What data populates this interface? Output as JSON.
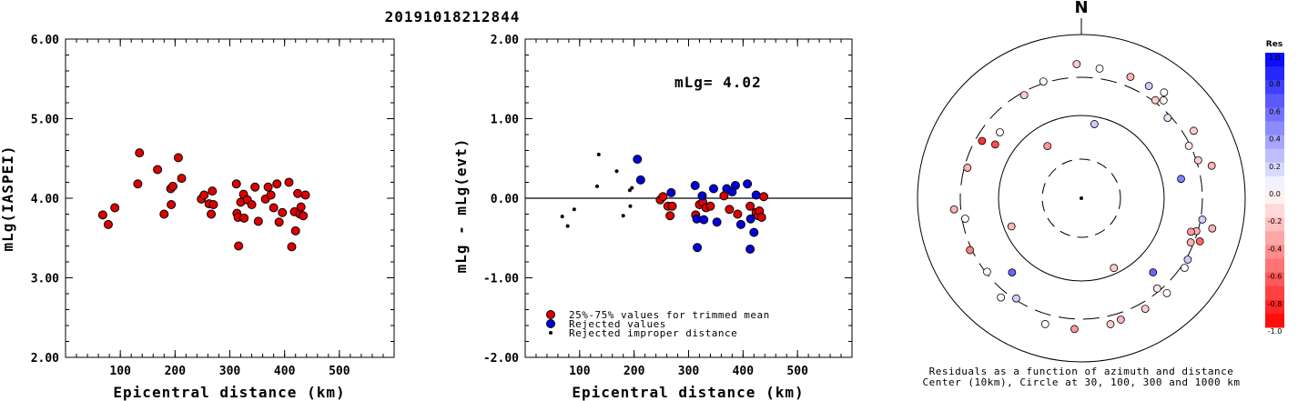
{
  "header": {
    "title": "20191018212844"
  },
  "chart_data": [
    {
      "type": "scatter",
      "name": "magnitude-vs-distance",
      "xlabel": "Epicentral distance (km)",
      "ylabel": "mLg(IASPEI)",
      "xlim": [
        0,
        600
      ],
      "ylim": [
        2.0,
        6.0
      ],
      "xticks": [
        "100",
        "200",
        "300",
        "400",
        "500"
      ],
      "yticks": [
        "2.00",
        "3.00",
        "4.00",
        "5.00",
        "6.00"
      ],
      "point_color": "#dd0000",
      "points": [
        [
          68,
          3.79
        ],
        [
          78,
          3.67
        ],
        [
          90,
          3.88
        ],
        [
          132,
          4.18
        ],
        [
          135,
          4.57
        ],
        [
          168,
          4.36
        ],
        [
          180,
          3.8
        ],
        [
          192,
          4.12
        ],
        [
          193,
          3.92
        ],
        [
          196,
          4.15
        ],
        [
          206,
          4.51
        ],
        [
          212,
          4.25
        ],
        [
          248,
          3.99
        ],
        [
          253,
          4.04
        ],
        [
          262,
          3.93
        ],
        [
          266,
          3.8
        ],
        [
          268,
          4.09
        ],
        [
          270,
          3.92
        ],
        [
          312,
          4.18
        ],
        [
          313,
          3.81
        ],
        [
          315,
          3.76
        ],
        [
          316,
          3.4
        ],
        [
          320,
          3.95
        ],
        [
          325,
          4.05
        ],
        [
          326,
          3.75
        ],
        [
          332,
          3.98
        ],
        [
          340,
          3.92
        ],
        [
          346,
          4.14
        ],
        [
          352,
          3.71
        ],
        [
          365,
          3.99
        ],
        [
          370,
          4.14
        ],
        [
          375,
          4.04
        ],
        [
          380,
          3.88
        ],
        [
          386,
          4.18
        ],
        [
          390,
          3.7
        ],
        [
          396,
          3.82
        ],
        [
          408,
          4.2
        ],
        [
          413,
          3.39
        ],
        [
          418,
          3.83
        ],
        [
          420,
          3.59
        ],
        [
          424,
          4.06
        ],
        [
          428,
          3.8
        ],
        [
          430,
          3.89
        ],
        [
          434,
          3.78
        ],
        [
          438,
          4.04
        ]
      ]
    },
    {
      "type": "scatter",
      "name": "residual-vs-distance",
      "xlabel": "Epicentral distance (km)",
      "ylabel": "mLg - mLg(evt)",
      "xlim": [
        0,
        600
      ],
      "ylim": [
        -2.0,
        2.0
      ],
      "xticks": [
        "100",
        "200",
        "300",
        "400",
        "500"
      ],
      "yticks": [
        "-2.00",
        "-1.00",
        "0.00",
        "1.00",
        "2.00"
      ],
      "annotation": "mLg= 4.02",
      "legend": [
        {
          "label": "25%-75% values for trimmed mean",
          "color": "#dd0000",
          "marker": "circle"
        },
        {
          "label": "Rejected values",
          "color": "#0000dd",
          "marker": "circle"
        },
        {
          "label": "Rejected improper distance",
          "color": "#000000",
          "marker": "dot"
        }
      ],
      "series": [
        {
          "name": "25%-75% values for trimmed mean",
          "color": "#dd0000",
          "points": [
            [
              248,
              -0.02
            ],
            [
              253,
              0.02
            ],
            [
              262,
              -0.1
            ],
            [
              266,
              -0.22
            ],
            [
              270,
              -0.1
            ],
            [
              313,
              -0.21
            ],
            [
              320,
              -0.08
            ],
            [
              326,
              -0.05
            ],
            [
              332,
              -0.12
            ],
            [
              340,
              -0.1
            ],
            [
              365,
              0.03
            ],
            [
              375,
              -0.14
            ],
            [
              390,
              -0.2
            ],
            [
              413,
              -0.1
            ],
            [
              424,
              -0.18
            ],
            [
              428,
              -0.22
            ],
            [
              430,
              -0.16
            ],
            [
              434,
              -0.24
            ],
            [
              438,
              0.02
            ]
          ]
        },
        {
          "name": "Rejected values",
          "color": "#0000dd",
          "points": [
            [
              206,
              0.49
            ],
            [
              212,
              0.23
            ],
            [
              268,
              0.07
            ],
            [
              312,
              0.16
            ],
            [
              315,
              -0.26
            ],
            [
              316,
              -0.62
            ],
            [
              325,
              0.03
            ],
            [
              328,
              -0.27
            ],
            [
              346,
              0.12
            ],
            [
              352,
              -0.3
            ],
            [
              370,
              0.12
            ],
            [
              380,
              0.08
            ],
            [
              386,
              0.16
            ],
            [
              396,
              -0.33
            ],
            [
              408,
              0.18
            ],
            [
              413,
              -0.64
            ],
            [
              420,
              -0.43
            ],
            [
              424,
              0.04
            ],
            [
              414,
              -0.26
            ]
          ]
        },
        {
          "name": "Rejected improper distance",
          "color": "#000000",
          "points": [
            [
              68,
              -0.23
            ],
            [
              78,
              -0.35
            ],
            [
              90,
              -0.14
            ],
            [
              132,
              0.15
            ],
            [
              135,
              0.55
            ],
            [
              168,
              0.34
            ],
            [
              180,
              -0.22
            ],
            [
              192,
              0.1
            ],
            [
              193,
              -0.1
            ],
            [
              196,
              0.13
            ]
          ]
        }
      ]
    },
    {
      "type": "polar",
      "name": "residuals-azimuth-distance",
      "north_label": "N",
      "caption_line1": "Residuals as a function of azimuth and distance",
      "caption_line2": "Center (10km), Circle at 30, 100, 300 and 1000 km",
      "colorbar": {
        "title": "Res",
        "ticks": [
          "1.0",
          "0.8",
          "0.6",
          "0.4",
          "0.2",
          "0.0",
          "-0.2",
          "-0.4",
          "-0.6",
          "-0.8",
          "-1.0"
        ],
        "max_color": "#0000ff",
        "zero_color": "#ffffff",
        "min_color": "#ff0000"
      },
      "points": [
        {
          "az": 358,
          "r": 0.82,
          "res": -0.2
        },
        {
          "az": 8,
          "r": 0.8,
          "res": 0.0
        },
        {
          "az": 22,
          "r": 0.8,
          "res": -0.3
        },
        {
          "az": 31,
          "r": 0.8,
          "res": 0.2
        },
        {
          "az": 38,
          "r": 0.82,
          "res": 0.0
        },
        {
          "az": 40,
          "r": 0.78,
          "res": 0.0
        },
        {
          "az": 37,
          "r": 0.75,
          "res": -0.2
        },
        {
          "az": 47,
          "r": 0.72,
          "res": 0.1
        },
        {
          "az": 59,
          "r": 0.8,
          "res": -0.2
        },
        {
          "az": 64,
          "r": 0.73,
          "res": -0.1
        },
        {
          "az": 72,
          "r": 0.75,
          "res": -0.2
        },
        {
          "az": 76,
          "r": 0.82,
          "res": -0.3
        },
        {
          "az": 79,
          "r": 0.62,
          "res": 0.5
        },
        {
          "az": 100,
          "r": 0.75,
          "res": 0.2
        },
        {
          "az": 103,
          "r": 0.82,
          "res": -0.3
        },
        {
          "az": 106,
          "r": 0.73,
          "res": -0.3
        },
        {
          "az": 107,
          "r": 0.7,
          "res": -0.4
        },
        {
          "az": 110,
          "r": 0.77,
          "res": -0.6
        },
        {
          "az": 112,
          "r": 0.72,
          "res": -0.3
        },
        {
          "az": 120,
          "r": 0.75,
          "res": 0.2
        },
        {
          "az": 124,
          "r": 0.76,
          "res": 0.0
        },
        {
          "az": 136,
          "r": 0.63,
          "res": 0.6
        },
        {
          "az": 140,
          "r": 0.72,
          "res": -0.1
        },
        {
          "az": 138,
          "r": 0.78,
          "res": 0.0
        },
        {
          "az": 150,
          "r": 0.78,
          "res": -0.2
        },
        {
          "az": 162,
          "r": 0.78,
          "res": -0.3
        },
        {
          "az": 167,
          "r": 0.79,
          "res": -0.2
        },
        {
          "az": 155,
          "r": 0.47,
          "res": -0.2
        },
        {
          "az": 183,
          "r": 0.8,
          "res": -0.4
        },
        {
          "az": 196,
          "r": 0.8,
          "res": 0.0
        },
        {
          "az": 213,
          "r": 0.73,
          "res": 0.2
        },
        {
          "az": 219,
          "r": 0.78,
          "res": 0.0
        },
        {
          "az": 223,
          "r": 0.62,
          "res": 0.6
        },
        {
          "az": 232,
          "r": 0.73,
          "res": 0.0
        },
        {
          "az": 245,
          "r": 0.75,
          "res": -0.5
        },
        {
          "az": 248,
          "r": 0.46,
          "res": -0.3
        },
        {
          "az": 260,
          "r": 0.72,
          "res": 0.0
        },
        {
          "az": 265,
          "r": 0.78,
          "res": -0.3
        },
        {
          "az": 285,
          "r": 0.72,
          "res": -0.3
        },
        {
          "az": 302,
          "r": 0.62,
          "res": -0.7
        },
        {
          "az": 300,
          "r": 0.7,
          "res": -0.8
        },
        {
          "az": 309,
          "r": 0.64,
          "res": 0.0
        },
        {
          "az": 327,
          "r": 0.38,
          "res": -0.4
        },
        {
          "az": 331,
          "r": 0.72,
          "res": -0.2
        },
        {
          "az": 342,
          "r": 0.75,
          "res": 0.0
        },
        {
          "az": 10,
          "r": 0.46,
          "res": 0.2
        }
      ]
    }
  ]
}
